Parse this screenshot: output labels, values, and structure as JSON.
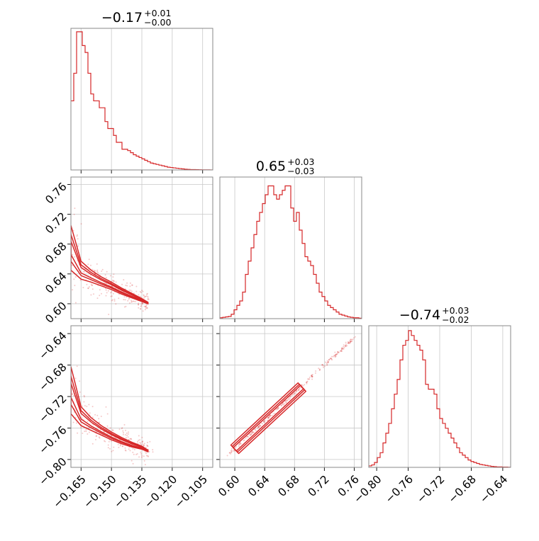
{
  "chart_data": {
    "type": "corner",
    "color": "#d62728",
    "grid": true,
    "params": [
      {
        "title_main": "−0.17",
        "title_plus": "+0.01",
        "title_minus": "−0.00",
        "range": [
          -0.17,
          -0.1
        ],
        "ticks": [
          -0.165,
          -0.15,
          -0.135,
          -0.12,
          -0.105
        ],
        "ticklabels": [
          "−0.165",
          "−0.150",
          "−0.135",
          "−0.120",
          "−0.105"
        ],
        "hist": {
          "edges": [
            -0.17,
            -0.1
          ],
          "values": [
            10,
            14,
            20,
            20,
            18,
            17,
            14,
            11,
            10,
            10,
            9,
            9,
            7,
            6,
            6,
            5,
            4,
            4,
            3,
            3,
            2.8,
            2.5,
            2.2,
            2,
            1.8,
            1.6,
            1.4,
            1.2,
            1.0,
            0.9,
            0.8,
            0.7,
            0.6,
            0.5,
            0.4,
            0.35,
            0.3,
            0.25,
            0.2,
            0.15,
            0.1,
            0.08,
            0.06,
            0.05,
            0.04,
            0.03,
            0.02,
            0.01,
            0.01,
            0.005
          ],
          "ymax": 20.5
        }
      },
      {
        "title_main": "0.65",
        "title_plus": "+0.03",
        "title_minus": "−0.03",
        "range": [
          0.58,
          0.77
        ],
        "ticks": [
          0.6,
          0.64,
          0.68,
          0.72,
          0.76
        ],
        "ticklabels": [
          "0.60",
          "0.64",
          "0.68",
          "0.72",
          "0.76"
        ],
        "hist": {
          "edges": [
            0.58,
            0.77
          ],
          "values": [
            0.2,
            0.3,
            0.4,
            0.5,
            1,
            2,
            3,
            4,
            6,
            10,
            13,
            16,
            19,
            22,
            24,
            26,
            28,
            30,
            30,
            28,
            27,
            28,
            29,
            30,
            30,
            25,
            22,
            24,
            20,
            17,
            14,
            13,
            12,
            10,
            8,
            6,
            5,
            4,
            3,
            2.5,
            2,
            1.5,
            1.0,
            0.8,
            0.6,
            0.4,
            0.3,
            0.2,
            0.2,
            0.1
          ],
          "ymax": 32
        }
      },
      {
        "title_main": "−0.74",
        "title_plus": "+0.03",
        "title_minus": "−0.02",
        "range": [
          -0.81,
          -0.63
        ],
        "ticks": [
          -0.8,
          -0.76,
          -0.72,
          -0.68,
          -0.64
        ],
        "ticklabels": [
          "−0.80",
          "−0.76",
          "−0.72",
          "−0.68",
          "−0.64"
        ],
        "hist": {
          "edges": [
            -0.81,
            -0.63
          ],
          "values": [
            0.3,
            0.5,
            1,
            2,
            3,
            5,
            7,
            9,
            12,
            15,
            18,
            22,
            25,
            26,
            28,
            27,
            26,
            25,
            24,
            22,
            17,
            16,
            16,
            15,
            12,
            10,
            9,
            8,
            7,
            6,
            5,
            4,
            3,
            2.5,
            2,
            1.5,
            1.2,
            1,
            0.8,
            0.6,
            0.5,
            0.4,
            0.3,
            0.2,
            0.15,
            0.1,
            0.1,
            0.05,
            0.05,
            0.02
          ],
          "ymax": 29
        }
      }
    ],
    "pairs": [
      {
        "x_param": 0,
        "y_param": 1,
        "curve": [
          [
            -0.17,
            0.675
          ],
          [
            -0.165,
            0.645
          ],
          [
            -0.16,
            0.637
          ],
          [
            -0.155,
            0.63
          ],
          [
            -0.15,
            0.624
          ],
          [
            -0.145,
            0.617
          ],
          [
            -0.14,
            0.611
          ],
          [
            -0.135,
            0.605
          ],
          [
            -0.132,
            0.601
          ]
        ],
        "widths": [
          0.03,
          0.012,
          0.008,
          0.006,
          0.005,
          0.004,
          0.003,
          0.002,
          0.001
        ]
      },
      {
        "x_param": 0,
        "y_param": 2,
        "curve": [
          [
            -0.17,
            -0.712
          ],
          [
            -0.165,
            -0.745
          ],
          [
            -0.16,
            -0.755
          ],
          [
            -0.155,
            -0.763
          ],
          [
            -0.15,
            -0.77
          ],
          [
            -0.145,
            -0.776
          ],
          [
            -0.14,
            -0.781
          ],
          [
            -0.135,
            -0.785
          ],
          [
            -0.132,
            -0.789
          ]
        ],
        "widths": [
          0.03,
          0.012,
          0.008,
          0.006,
          0.005,
          0.004,
          0.003,
          0.002,
          0.001
        ]
      },
      {
        "x_param": 1,
        "y_param": 2,
        "line": [
          [
            0.59,
            -0.795
          ],
          [
            0.76,
            -0.645
          ]
        ],
        "core": [
          [
            0.6,
            -0.787
          ],
          [
            0.69,
            -0.708
          ]
        ],
        "halfwidth": 0.004
      }
    ]
  }
}
